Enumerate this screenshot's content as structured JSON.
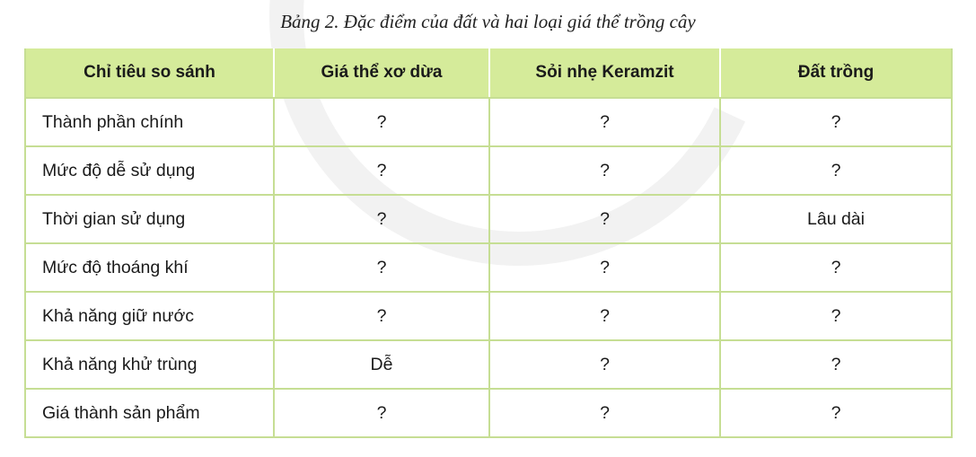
{
  "caption": "Bảng 2. Đặc điểm của đất và hai loại giá thể trồng cây",
  "colors": {
    "header_bg": "#d5eb9a",
    "border": "#c6de94"
  },
  "table": {
    "headers": [
      "Chỉ tiêu so sánh",
      "Giá thể xơ dừa",
      "Sỏi nhẹ Keramzit",
      "Đất trồng"
    ],
    "rows": [
      [
        "Thành phần chính",
        "?",
        "?",
        "?"
      ],
      [
        "Mức độ dễ sử dụng",
        "?",
        "?",
        "?"
      ],
      [
        "Thời gian sử dụng",
        "?",
        "?",
        "Lâu dài"
      ],
      [
        "Mức độ thoáng khí",
        "?",
        "?",
        "?"
      ],
      [
        "Khả năng giữ nước",
        "?",
        "?",
        "?"
      ],
      [
        "Khả năng khử trùng",
        "Dễ",
        "?",
        "?"
      ],
      [
        "Giá thành sản phẩm",
        "?",
        "?",
        "?"
      ]
    ]
  }
}
